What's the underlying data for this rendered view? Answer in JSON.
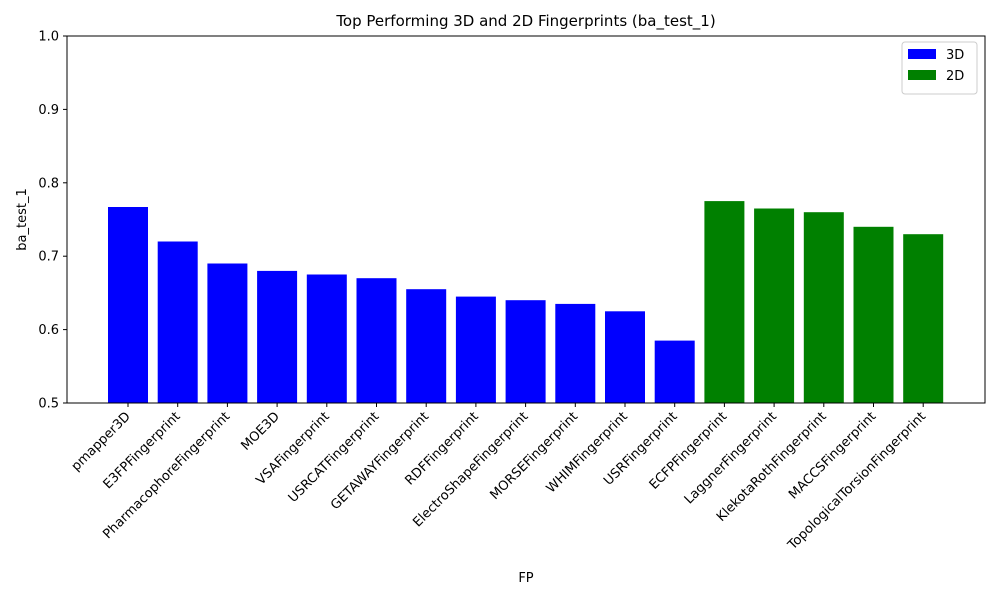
{
  "chart_data": {
    "type": "bar",
    "title": "Top Performing 3D and 2D Fingerprints (ba_test_1)",
    "xlabel": "FP",
    "ylabel": "ba_test_1",
    "ylim": [
      0.5,
      1.0
    ],
    "yticks": [
      "0.5",
      "0.6",
      "0.7",
      "0.8",
      "0.9",
      "1.0"
    ],
    "grid": false,
    "legend_position": "top-right",
    "series": [
      {
        "name": "3D",
        "color": "#0000ff",
        "categories": [
          "pmapper3D",
          "E3FPFingerprint",
          "PharmacophoreFingerprint",
          "MOE3D",
          "VSAFingerprint",
          "USRCATFingerprint",
          "GETAWAYFingerprint",
          "RDFFingerprint",
          "ElectroShapeFingerprint",
          "MORSEFingerprint",
          "WHIMFingerprint",
          "USRFingerprint"
        ],
        "values": [
          0.767,
          0.72,
          0.69,
          0.68,
          0.675,
          0.67,
          0.655,
          0.645,
          0.64,
          0.635,
          0.625,
          0.585
        ]
      },
      {
        "name": "2D",
        "color": "#008000",
        "categories": [
          "ECFPFingerprint",
          "LaggnerFingerprint",
          "KlekotaRothFingerprint",
          "MACCSFingerprint",
          "TopologicalTorsionFingerprint"
        ],
        "values": [
          0.775,
          0.765,
          0.76,
          0.74,
          0.73
        ]
      }
    ]
  }
}
